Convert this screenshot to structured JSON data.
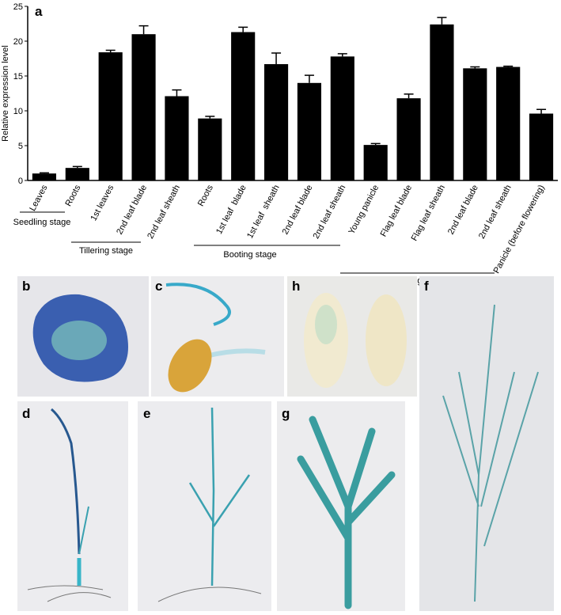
{
  "chart_data": {
    "type": "bar",
    "panel_label": "a",
    "y_label": "Relative expression level",
    "categories": [
      "Leaves",
      "Roots",
      "1st leaves",
      "2nd leaf blade",
      "2nd leaf sheath",
      "Roots",
      "1st leaf  blade",
      "1st leaf  sheath",
      "2nd leaf blade",
      "2nd leaf sheath",
      "Young panicle",
      "Flag leaf blade",
      "Flag leaf sheath",
      "2nd leaf blade",
      "2nd leaf sheath",
      "Panicle (before flowering)"
    ],
    "values": [
      1.0,
      1.8,
      18.4,
      21.0,
      12.1,
      8.9,
      21.3,
      16.7,
      14.0,
      17.8,
      5.1,
      11.8,
      22.4,
      16.1,
      16.3,
      9.6
    ],
    "errors": [
      0.1,
      0.2,
      0.3,
      1.2,
      0.9,
      0.3,
      0.7,
      1.6,
      1.1,
      0.4,
      0.2,
      0.6,
      1.0,
      0.2,
      0.1,
      0.6
    ],
    "color": "#000000",
    "ylim": [
      0,
      25
    ],
    "yticks": [
      0,
      5,
      10,
      15,
      20,
      25
    ],
    "stages": [
      "Seedling stage",
      "Tillering stage",
      "Booting stage",
      "Heading stage"
    ]
  },
  "panel_labels": [
    "b",
    "c",
    "h",
    "d",
    "e",
    "g",
    "f"
  ]
}
